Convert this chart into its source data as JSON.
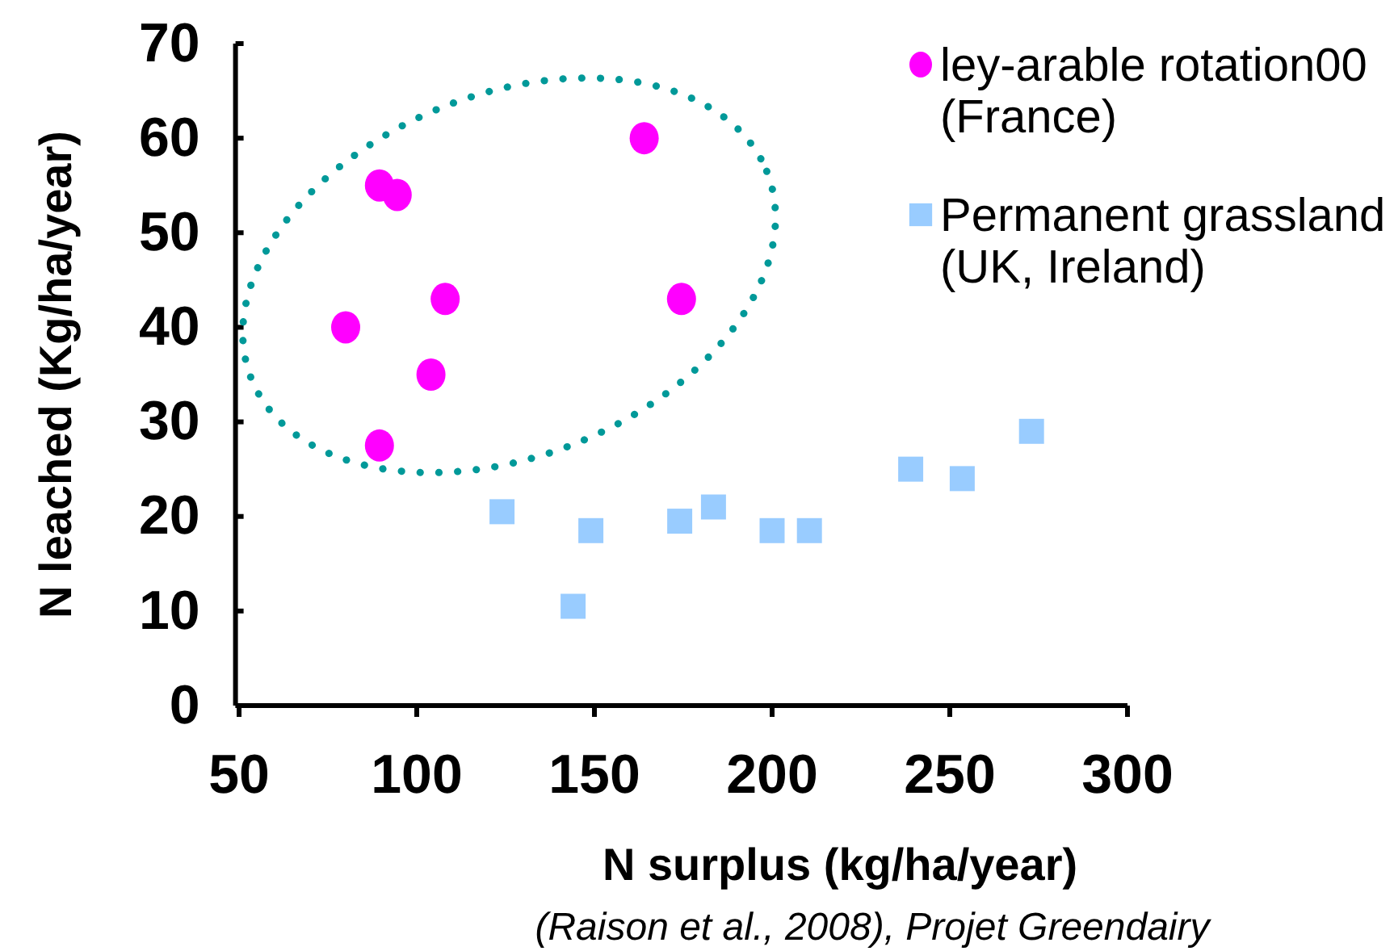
{
  "chart_data": {
    "type": "scatter",
    "xlabel": "N surplus (kg/ha/year)",
    "ylabel": "N leached  (Kg/ha/year)",
    "annotations": [
      "(Raison et al., 2008), Projet Greendairy"
    ],
    "xlim": [
      49,
      300
    ],
    "ylim": [
      0,
      70
    ],
    "xticks": [
      50,
      100,
      150,
      200,
      250,
      300
    ],
    "yticks": [
      0,
      10,
      20,
      30,
      40,
      50,
      60,
      70
    ],
    "grid": false,
    "legend": "top right",
    "series": [
      {
        "name": "ley-arable rotation00 (France)",
        "color": "#ff00ff",
        "marker": "circle",
        "x": [
          80,
          89.5,
          94.5,
          108,
          104,
          89.5,
          164,
          174.5
        ],
        "values": [
          40,
          55,
          54,
          43,
          35,
          27.5,
          60,
          43
        ]
      },
      {
        "name": "Permanent grassland (UK, Ireland)",
        "color": "#99ccff",
        "marker": "square",
        "x": [
          124,
          144,
          149,
          174,
          183.5,
          200,
          210.5,
          239,
          253.5,
          273
        ],
        "values": [
          20.5,
          10.5,
          18.5,
          19.5,
          21,
          18.5,
          18.5,
          25,
          24,
          29
        ]
      }
    ]
  }
}
